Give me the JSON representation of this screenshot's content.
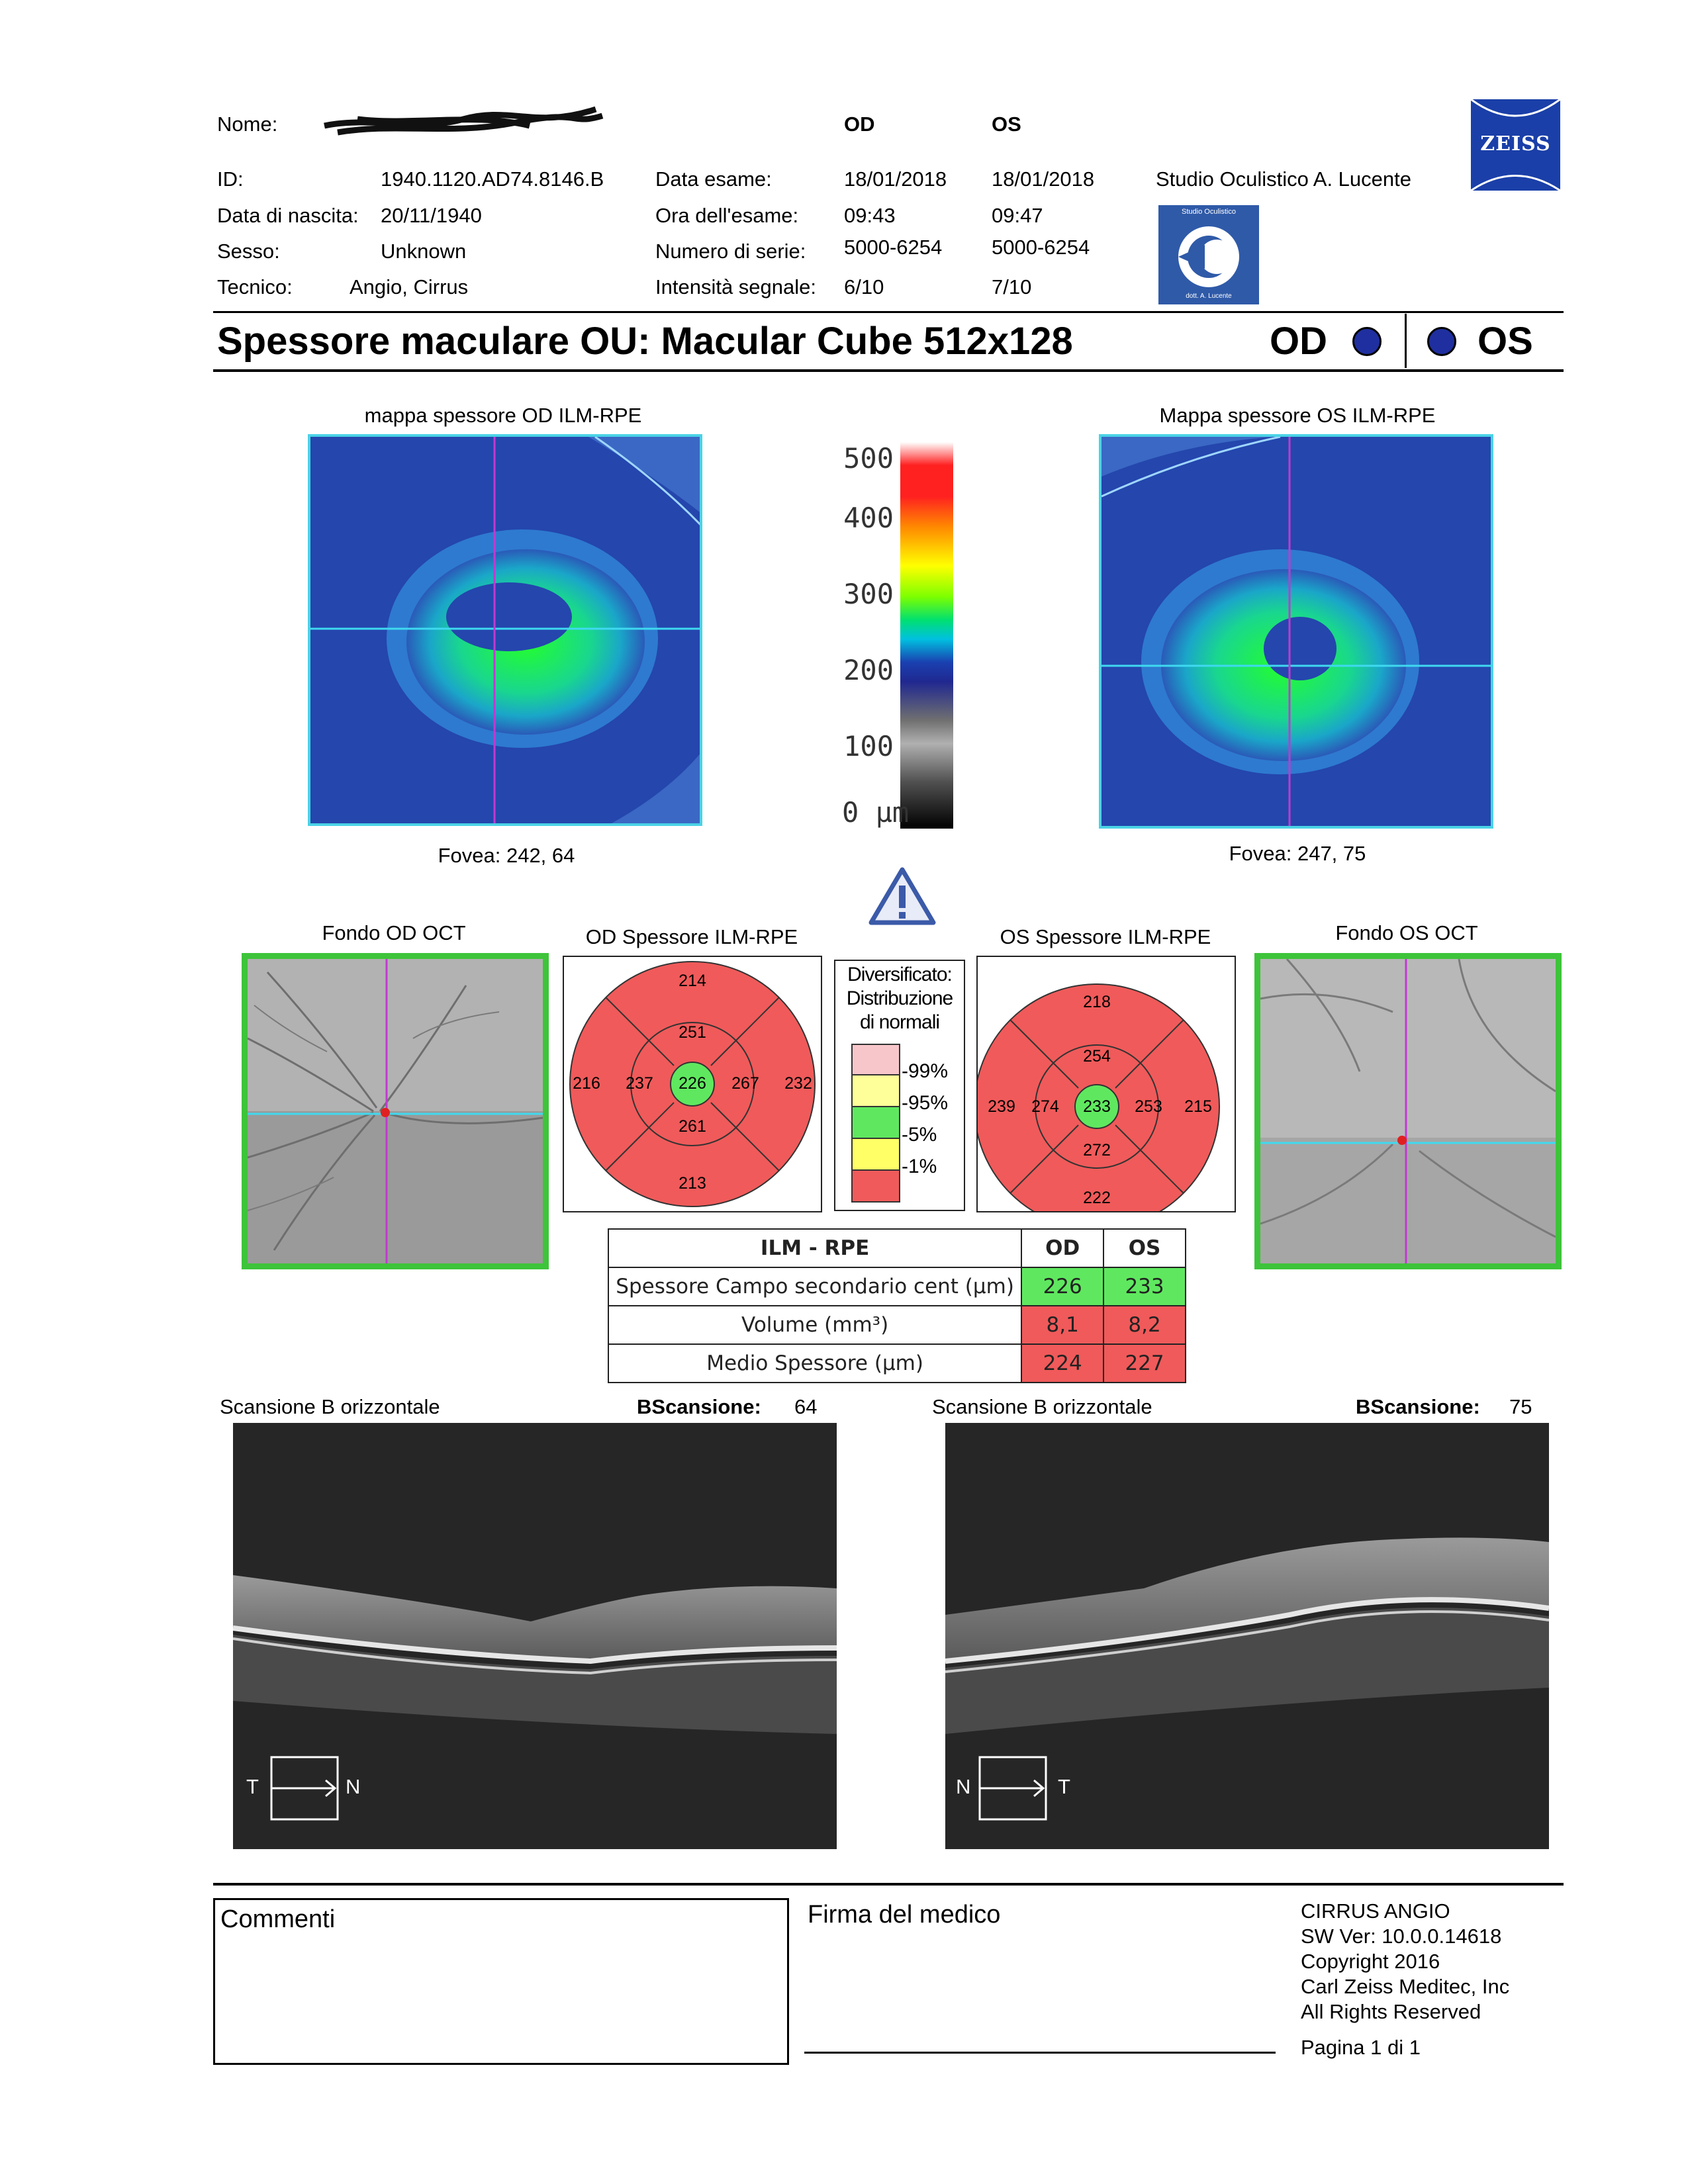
{
  "header": {
    "name_label": "Nome:",
    "od_label": "OD",
    "os_label": "OS",
    "id_label": "ID:",
    "id_value": "1940.1120.AD74.8146.B",
    "dob_label": "Data di nascita:",
    "dob_value": "20/11/1940",
    "sex_label": "Sesso:",
    "sex_value": "Unknown",
    "tech_label": "Tecnico:",
    "tech_value": "Angio, Cirrus",
    "exam_date_label": "Data esame:",
    "exam_date_od": "18/01/2018",
    "exam_date_os": "18/01/2018",
    "exam_time_label": "Ora dell'esame:",
    "exam_time_od": "09:43",
    "exam_time_os": "09:47",
    "serial_label": "Numero di serie:",
    "serial_od": "5000-6254",
    "serial_os": "5000-6254",
    "signal_label": "Intensità segnale:",
    "signal_od": "6/10",
    "signal_os": "7/10",
    "clinic": "Studio Oculistico A. Lucente",
    "brand": "ZEISS",
    "clinic_logo_top": "Studio Oculistico",
    "clinic_logo_bottom": "dott. A. Lucente"
  },
  "title": {
    "text": "Spessore maculare OU: Macular Cube 512x128",
    "od": "OD",
    "os": "OS"
  },
  "maps": {
    "od_title": "mappa spessore OD ILM-RPE",
    "os_title": "Mappa spessore OS ILM-RPE",
    "od_fovea": "Fovea: 242, 64",
    "os_fovea": "Fovea: 247, 75"
  },
  "colorbar": {
    "ticks": [
      "500",
      "400",
      "300",
      "200",
      "100",
      "0 µm"
    ]
  },
  "fundus": {
    "od_title": "Fondo OD OCT",
    "os_title": "Fondo OS OCT"
  },
  "etdrs": {
    "od_title": "OD Spessore ILM-RPE",
    "os_title": "OS Spessore ILM-RPE",
    "od": {
      "outer_top": "214",
      "inner_top": "251",
      "outer_left": "216",
      "inner_left": "237",
      "center": "226",
      "inner_right": "267",
      "outer_right": "232",
      "inner_bottom": "261",
      "outer_bottom": "213"
    },
    "os": {
      "outer_top": "218",
      "inner_top": "254",
      "outer_left": "239",
      "inner_left": "274",
      "center": "233",
      "inner_right": "253",
      "outer_right": "215",
      "inner_bottom": "272",
      "outer_bottom": "222"
    }
  },
  "legend": {
    "line1": "Diversificato:",
    "line2": "Distribuzione",
    "line3": "di normali",
    "p99": "99%",
    "p95": "95%",
    "p5": "5%",
    "p1": "1%",
    "colors": [
      "#f7c6cb",
      "#ffff99",
      "#5fe85f",
      "#ffff66",
      "#f05a5a"
    ]
  },
  "summary": {
    "h_label": "ILM - RPE",
    "h_od": "OD",
    "h_os": "OS",
    "rows": [
      {
        "label": "Spessore Campo secondario cent (µm)",
        "od": "226",
        "os": "233"
      },
      {
        "label": "Volume (mm³)",
        "od": "8,1",
        "os": "8,2"
      },
      {
        "label": "Medio Spessore (µm)",
        "od": "224",
        "os": "227"
      }
    ]
  },
  "bscans": {
    "od_title": "Scansione B orizzontale",
    "od_label": "BScansione:",
    "od_value": "64",
    "os_title": "Scansione B orizzontale",
    "os_label": "BScansione:",
    "os_value": "75",
    "od_left": "T",
    "od_right": "N",
    "os_left": "N",
    "os_right": "T"
  },
  "footer": {
    "comments": "Commenti",
    "signature": "Firma del medico",
    "sw1": "CIRRUS ANGIO",
    "sw2": "SW Ver: 10.0.0.14618",
    "sw3": "Copyright 2016",
    "sw4": "Carl Zeiss Meditec, Inc",
    "sw5": "All Rights Reserved",
    "page": "Pagina 1 di 1"
  }
}
